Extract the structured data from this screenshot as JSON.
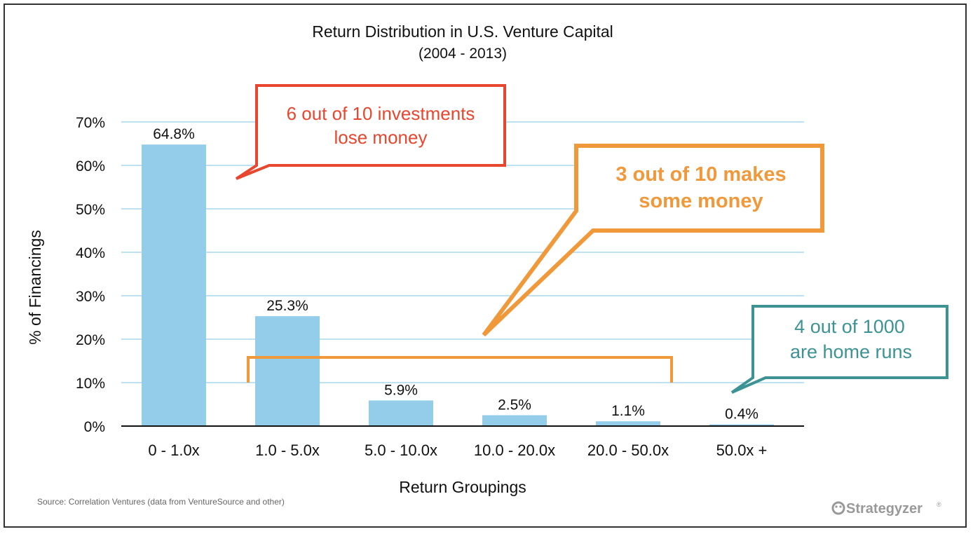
{
  "chart_data": {
    "type": "bar",
    "title": "Return Distribution in U.S. Venture Capital",
    "subtitle": "(2004 - 2013)",
    "xlabel": "Return Groupings",
    "ylabel": "% of Financings",
    "ylim": [
      0,
      70
    ],
    "yticks": [
      0,
      10,
      20,
      30,
      40,
      50,
      60,
      70
    ],
    "ytick_labels": [
      "0%",
      "10%",
      "20%",
      "30%",
      "40%",
      "50%",
      "60%",
      "70%"
    ],
    "categories": [
      "0 - 1.0x",
      "1.0 - 5.0x",
      "5.0 - 10.0x",
      "10.0 - 20.0x",
      "20.0 - 50.0x",
      "50.0x +"
    ],
    "values": [
      64.8,
      25.3,
      5.9,
      2.5,
      1.1,
      0.4
    ],
    "value_labels": [
      "64.8%",
      "25.3%",
      "5.9%",
      "2.5%",
      "1.1%",
      "0.4%"
    ],
    "grid": true,
    "bar_color": "#94cdea",
    "grid_color": "#a8d8ee",
    "annotations": [
      {
        "lines": [
          "6 out of 10 investments",
          "lose money"
        ],
        "color": "#e8462e"
      },
      {
        "lines": [
          "3 out of 10 makes",
          "some money"
        ],
        "color": "#f0993b"
      },
      {
        "lines": [
          "4 out of 1000",
          "are home runs"
        ],
        "color": "#3d9394"
      }
    ]
  },
  "source": "Source: Correlation Ventures (data from VentureSource and other)",
  "brand": "Strategyzer",
  "brand_mark": "®"
}
